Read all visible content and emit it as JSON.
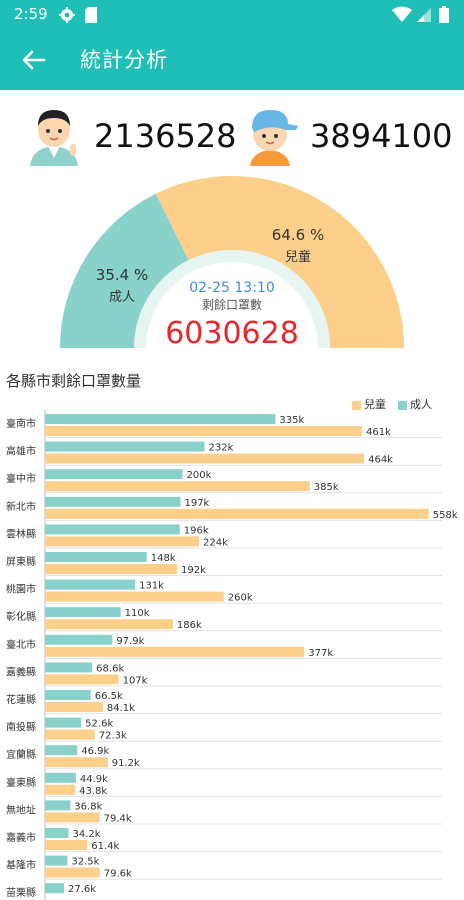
{
  "status_bar": {
    "time": "2:59",
    "icons": [
      "gear-icon",
      "sd-card-icon",
      "wifi-icon",
      "signal-icon",
      "battery-icon"
    ]
  },
  "app_bar": {
    "title": "統計分析",
    "back_icon": "arrow-left-icon"
  },
  "summary": {
    "adult_count": "2136528",
    "child_count": "3894100",
    "adult_avatar_icon": "adult-avatar-icon",
    "child_avatar_icon": "child-avatar-icon"
  },
  "gauge": {
    "adult_percent_label": "35.4 %",
    "adult_label": "成人",
    "adult_fraction": 0.354,
    "child_percent_label": "64.6 %",
    "child_label": "兒童",
    "child_fraction": 0.646,
    "timestamp": "02-25 13:10",
    "remaining_label": "剩餘口罩數",
    "total": "6030628"
  },
  "colors": {
    "teal": "#1fbfb8",
    "adult": "#89d1cb",
    "child": "#fcd08b",
    "total_red": "#e8262c",
    "timestamp_blue": "#3a8ee0"
  },
  "chart_data": {
    "type": "bar",
    "title": "各縣市剩餘口罩數量",
    "orientation": "horizontal",
    "legend_position": "top-right",
    "categories": [
      "臺南市",
      "高雄市",
      "臺中市",
      "新北市",
      "雲林縣",
      "屏東縣",
      "桃園市",
      "彰化縣",
      "臺北市",
      "嘉義縣",
      "花蓮縣",
      "南投縣",
      "宜蘭縣",
      "臺東縣",
      "無地址",
      "嘉義市",
      "基隆市",
      "苗栗縣"
    ],
    "series": [
      {
        "name": "成人",
        "color": "#89d1cb",
        "values": [
          335000,
          232000,
          200000,
          197000,
          196000,
          148000,
          131000,
          110000,
          97900,
          68600,
          66500,
          52600,
          46900,
          44900,
          36800,
          34200,
          32500,
          27600
        ],
        "labels": [
          "335k",
          "232k",
          "200k",
          "197k",
          "196k",
          "148k",
          "131k",
          "110k",
          "97.9k",
          "68.6k",
          "66.5k",
          "52.6k",
          "46.9k",
          "44.9k",
          "36.8k",
          "34.2k",
          "32.5k",
          "27.6k"
        ]
      },
      {
        "name": "兒童",
        "color": "#fcd08b",
        "values": [
          461000,
          464000,
          385000,
          558000,
          224000,
          192000,
          260000,
          186000,
          377000,
          107000,
          84100,
          72300,
          91200,
          43800,
          79400,
          61400,
          79600,
          null
        ],
        "labels": [
          "461k",
          "464k",
          "385k",
          "558k",
          "224k",
          "192k",
          "260k",
          "186k",
          "377k",
          "107k",
          "84.1k",
          "72.3k",
          "91.2k",
          "43.8k",
          "79.4k",
          "61.4k",
          "79.6k",
          ""
        ]
      }
    ],
    "xlim": [
      0,
      570000
    ],
    "grid": true
  }
}
